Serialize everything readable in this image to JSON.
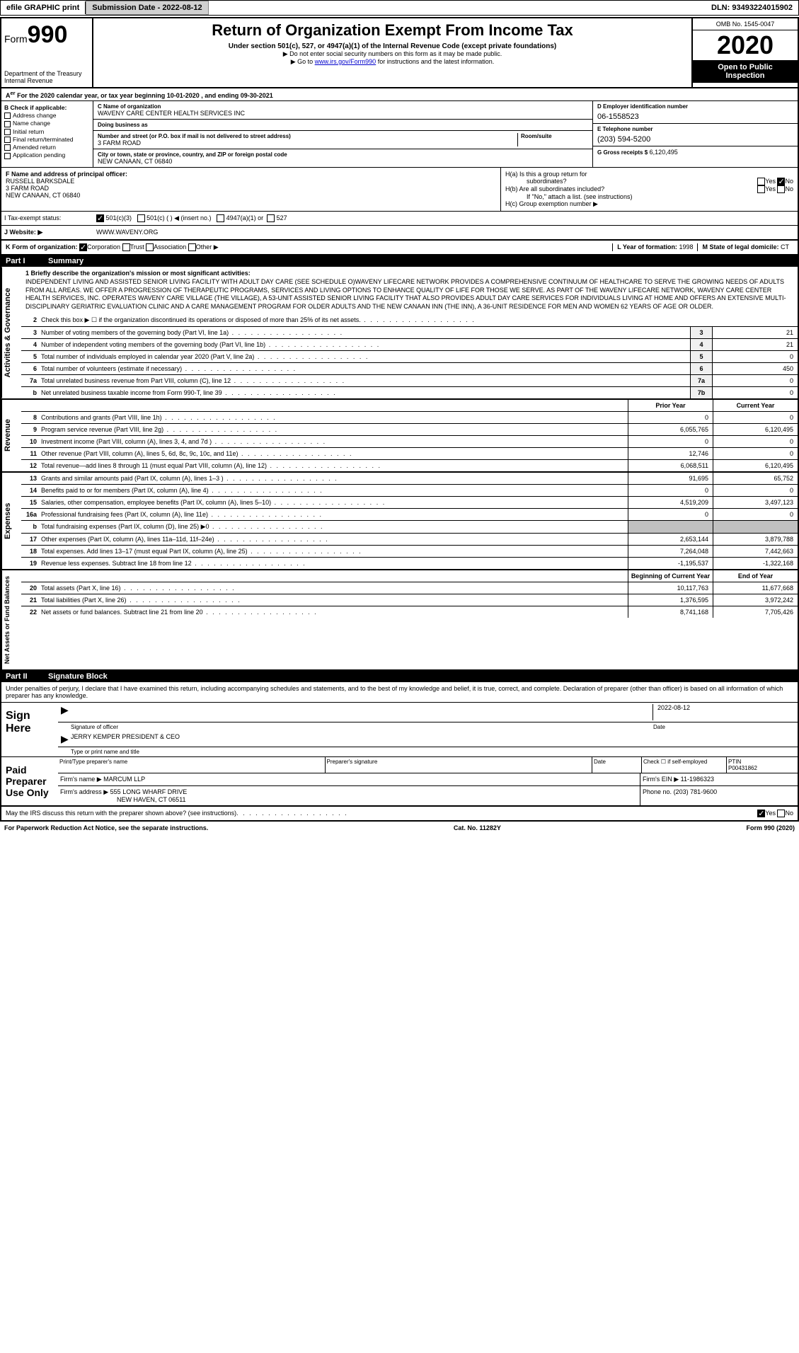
{
  "topbar": {
    "efile": "efile GRAPHIC print",
    "submission_label": "Submission Date - 2022-08-12",
    "dln": "DLN: 93493224015902"
  },
  "header": {
    "form_word": "Form",
    "form_number": "990",
    "dept": "Department of the Treasury",
    "irs": "Internal Revenue",
    "title": "Return of Organization Exempt From Income Tax",
    "subtitle": "Under section 501(c), 527, or 4947(a)(1) of the Internal Revenue Code (except private foundations)",
    "note1": "▶ Do not enter social security numbers on this form as it may be made public.",
    "note2_pre": "▶ Go to ",
    "note2_link": "www.irs.gov/Form990",
    "note2_post": " for instructions and the latest information.",
    "omb": "OMB No. 1545-0047",
    "year": "2020",
    "inspect1": "Open to Public",
    "inspect2": "Inspection"
  },
  "period": "For the 2020 calendar year, or tax year beginning 10-01-2020    , and ending 09-30-2021",
  "checkB": {
    "label": "B Check if applicable:",
    "items": [
      "Address change",
      "Name change",
      "Initial return",
      "Final return/terminated",
      "Amended return",
      "Application pending"
    ]
  },
  "blockC": {
    "name_label": "C Name of organization",
    "name": "WAVENY CARE CENTER HEALTH SERVICES INC",
    "dba_label": "Doing business as",
    "addr_label": "Number and street (or P.O. box if mail is not delivered to street address)",
    "room_label": "Room/suite",
    "addr": "3 FARM ROAD",
    "city_label": "City or town, state or province, country, and ZIP or foreign postal code",
    "city": "NEW CANAAN, CT 06840"
  },
  "blockD": {
    "label": "D Employer identification number",
    "ein": "06-1558523",
    "tel_label": "E Telephone number",
    "tel": "(203) 594-5200",
    "gross_label": "G Gross receipts $",
    "gross": "6,120,495"
  },
  "blockF": {
    "label": "F  Name and address of principal officer:",
    "name": "RUSSELL BARKSDALE",
    "addr1": "3 FARM ROAD",
    "addr2": "NEW CANAAN, CT  06840"
  },
  "blockH": {
    "a": "H(a)  Is this a group return for",
    "a2": "subordinates?",
    "b": "H(b)  Are all subordinates included?",
    "b2": "If \"No,\" attach a list. (see instructions)",
    "c": "H(c)  Group exemption number ▶",
    "yes": "Yes",
    "no": "No"
  },
  "rowI": {
    "label": "I   Tax-exempt status:",
    "c3": "501(c)(3)",
    "c": "501(c) (  )",
    "insert": "◀ (insert no.)",
    "a1": "4947(a)(1) or",
    "s527": "527"
  },
  "rowJ": {
    "label": "J   Website: ▶",
    "url": "WWW.WAVENY.ORG"
  },
  "rowK": {
    "label": "K Form of organization:",
    "corp": "Corporation",
    "trust": "Trust",
    "assoc": "Association",
    "other": "Other ▶",
    "year_label": "L Year of formation: ",
    "year": "1998",
    "state_label": "M State of legal domicile: ",
    "state": "CT"
  },
  "part1": {
    "label": "Part I",
    "title": "Summary"
  },
  "gov_label": "Activities & Governance",
  "mission_label": "1  Briefly describe the organization's mission or most significant activities:",
  "mission": "INDEPENDENT LIVING AND ASSISTED SENIOR LIVING FACILITY WITH ADULT DAY CARE (SEE SCHEDULE O)WAVENY LIFECARE NETWORK PROVIDES A COMPREHENSIVE CONTINUUM OF HEALTHCARE TO SERVE THE GROWING NEEDS OF ADULTS FROM ALL AREAS. WE OFFER A PROGRESSION OF THERAPEUTIC PROGRAMS, SERVICES AND LIVING OPTIONS TO ENHANCE QUALITY OF LIFE FOR THOSE WE SERVE. AS PART OF THE WAVENY LIFECARE NETWORK, WAVENY CARE CENTER HEALTH SERVICES, INC. OPERATES WAVENY CARE VILLAGE (THE VILLAGE), A 53-UNIT ASSISTED SENIOR LIVING FACILITY THAT ALSO PROVIDES ADULT DAY CARE SERVICES FOR INDIVIDUALS LIVING AT HOME AND OFFERS AN EXTENSIVE MULTI-DISCIPLINARY GERIATRIC EVALUATION CLINIC AND A CARE MANAGEMENT PROGRAM FOR OLDER ADULTS AND THE NEW CANAAN INN (THE INN), A 36-UNIT RESIDENCE FOR MEN AND WOMEN 62 YEARS OF AGE OR OLDER.",
  "lines_single": [
    {
      "n": "2",
      "t": "Check this box ▶ ☐ if the organization discontinued its operations or disposed of more than 25% of its net assets.",
      "box": "",
      "v": ""
    },
    {
      "n": "3",
      "t": "Number of voting members of the governing body (Part VI, line 1a)",
      "box": "3",
      "v": "21"
    },
    {
      "n": "4",
      "t": "Number of independent voting members of the governing body (Part VI, line 1b)",
      "box": "4",
      "v": "21"
    },
    {
      "n": "5",
      "t": "Total number of individuals employed in calendar year 2020 (Part V, line 2a)",
      "box": "5",
      "v": "0"
    },
    {
      "n": "6",
      "t": "Total number of volunteers (estimate if necessary)",
      "box": "6",
      "v": "450"
    },
    {
      "n": "7a",
      "t": "Total unrelated business revenue from Part VIII, column (C), line 12",
      "box": "7a",
      "v": "0"
    },
    {
      "n": "b",
      "t": "Net unrelated business taxable income from Form 990-T, line 39",
      "box": "7b",
      "v": "0"
    }
  ],
  "rev_label": "Revenue",
  "exp_label": "Expenses",
  "net_label": "Net Assets or Fund Balances",
  "col_hdrs": {
    "prior": "Prior Year",
    "current": "Current Year",
    "beg": "Beginning of Current Year",
    "end": "End of Year"
  },
  "revenue": [
    {
      "n": "8",
      "t": "Contributions and grants (Part VIII, line 1h)",
      "p": "0",
      "c": "0"
    },
    {
      "n": "9",
      "t": "Program service revenue (Part VIII, line 2g)",
      "p": "6,055,765",
      "c": "6,120,495"
    },
    {
      "n": "10",
      "t": "Investment income (Part VIII, column (A), lines 3, 4, and 7d )",
      "p": "0",
      "c": "0"
    },
    {
      "n": "11",
      "t": "Other revenue (Part VIII, column (A), lines 5, 6d, 8c, 9c, 10c, and 11e)",
      "p": "12,746",
      "c": "0"
    },
    {
      "n": "12",
      "t": "Total revenue—add lines 8 through 11 (must equal Part VIII, column (A), line 12)",
      "p": "6,068,511",
      "c": "6,120,495"
    }
  ],
  "expenses": [
    {
      "n": "13",
      "t": "Grants and similar amounts paid (Part IX, column (A), lines 1–3 )",
      "p": "91,695",
      "c": "65,752"
    },
    {
      "n": "14",
      "t": "Benefits paid to or for members (Part IX, column (A), line 4)",
      "p": "0",
      "c": "0"
    },
    {
      "n": "15",
      "t": "Salaries, other compensation, employee benefits (Part IX, column (A), lines 5–10)",
      "p": "4,519,209",
      "c": "3,497,123"
    },
    {
      "n": "16a",
      "t": "Professional fundraising fees (Part IX, column (A), line 11e)",
      "p": "0",
      "c": "0"
    },
    {
      "n": "b",
      "t": "Total fundraising expenses (Part IX, column (D), line 25) ▶0",
      "p": "",
      "c": "",
      "shaded": true
    },
    {
      "n": "17",
      "t": "Other expenses (Part IX, column (A), lines 11a–11d, 11f–24e)",
      "p": "2,653,144",
      "c": "3,879,788"
    },
    {
      "n": "18",
      "t": "Total expenses. Add lines 13–17 (must equal Part IX, column (A), line 25)",
      "p": "7,264,048",
      "c": "7,442,663"
    },
    {
      "n": "19",
      "t": "Revenue less expenses. Subtract line 18 from line 12",
      "p": "-1,195,537",
      "c": "-1,322,168"
    }
  ],
  "netassets": [
    {
      "n": "20",
      "t": "Total assets (Part X, line 16)",
      "p": "10,117,763",
      "c": "11,677,668"
    },
    {
      "n": "21",
      "t": "Total liabilities (Part X, line 26)",
      "p": "1,376,595",
      "c": "3,972,242"
    },
    {
      "n": "22",
      "t": "Net assets or fund balances. Subtract line 21 from line 20",
      "p": "8,741,168",
      "c": "7,705,426"
    }
  ],
  "part2": {
    "label": "Part II",
    "title": "Signature Block"
  },
  "penalty": "Under penalties of perjury, I declare that I have examined this return, including accompanying schedules and statements, and to the best of my knowledge and belief, it is true, correct, and complete. Declaration of preparer (other than officer) is based on all information of which preparer has any knowledge.",
  "sign": {
    "here": "Sign Here",
    "sig_label": "Signature of officer",
    "date_label": "Date",
    "date": "2022-08-12",
    "name": "JERRY KEMPER  PRESIDENT & CEO",
    "type_label": "Type or print name and title"
  },
  "paid": {
    "label": "Paid Preparer Use Only",
    "print_label": "Print/Type preparer's name",
    "sig_label": "Preparer's signature",
    "date_label": "Date",
    "check_label": "Check ☐ if self-employed",
    "ptin_label": "PTIN",
    "ptin": "P00431862",
    "firm_name_label": "Firm's name   ▶",
    "firm_name": "MARCUM LLP",
    "firm_ein_label": "Firm's EIN ▶",
    "firm_ein": "11-1986323",
    "firm_addr_label": "Firm's address ▶",
    "firm_addr1": "555 LONG WHARF DRIVE",
    "firm_addr2": "NEW HAVEN, CT 06511",
    "phone_label": "Phone no.",
    "phone": "(203) 781-9600"
  },
  "may_irs": "May the IRS discuss this return with the preparer shown above? (see instructions)",
  "footer": {
    "left": "For Paperwork Reduction Act Notice, see the separate instructions.",
    "mid": "Cat. No. 11282Y",
    "right": "Form 990 (2020)"
  },
  "colors": {
    "header_black": "#000000",
    "shaded": "#c0c0c0",
    "link": "#0000cc"
  }
}
